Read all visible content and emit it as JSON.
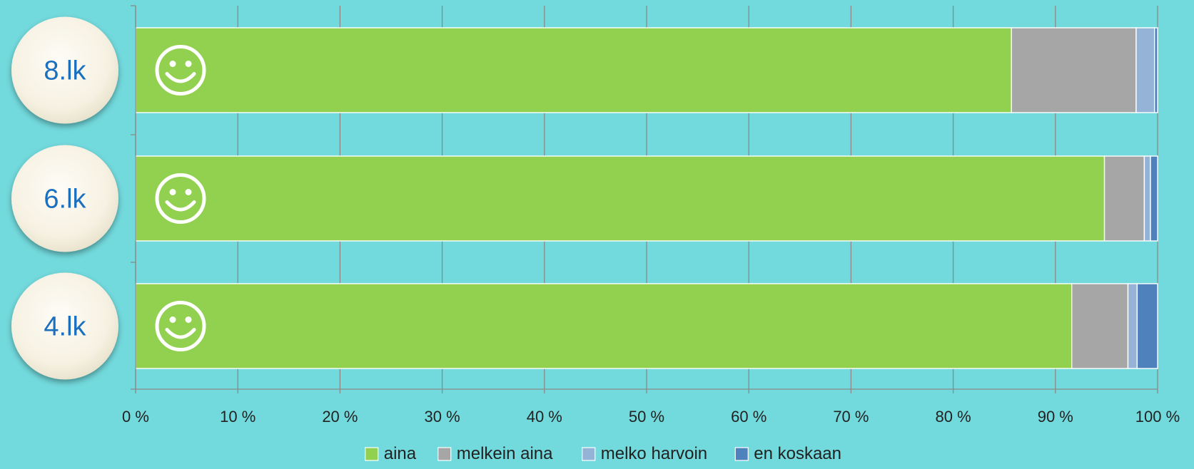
{
  "chart_data": {
    "type": "bar",
    "orientation": "horizontal",
    "stacked": true,
    "categories": [
      "8.lk",
      "6.lk",
      "4.lk"
    ],
    "series": [
      {
        "name": "aina",
        "color": "#92d050",
        "values": [
          85.7,
          94.8,
          91.6
        ]
      },
      {
        "name": "melkein aina",
        "color": "#a6a6a6",
        "values": [
          12.2,
          3.9,
          5.5
        ]
      },
      {
        "name": "melko harvoin",
        "color": "#95b3d7",
        "values": [
          1.8,
          0.6,
          0.9
        ]
      },
      {
        "name": "en koskaan",
        "color": "#4f81bd",
        "values": [
          0.3,
          0.7,
          2.0
        ]
      }
    ],
    "xlim": [
      0,
      100
    ],
    "xticks": [
      "0 %",
      "10 %",
      "20 %",
      "30 %",
      "40 %",
      "50 %",
      "60 %",
      "70 %",
      "80 %",
      "90 %",
      "100 %"
    ],
    "grid": true,
    "legend_position": "bottom",
    "bar_icon": "smiley-icon"
  }
}
